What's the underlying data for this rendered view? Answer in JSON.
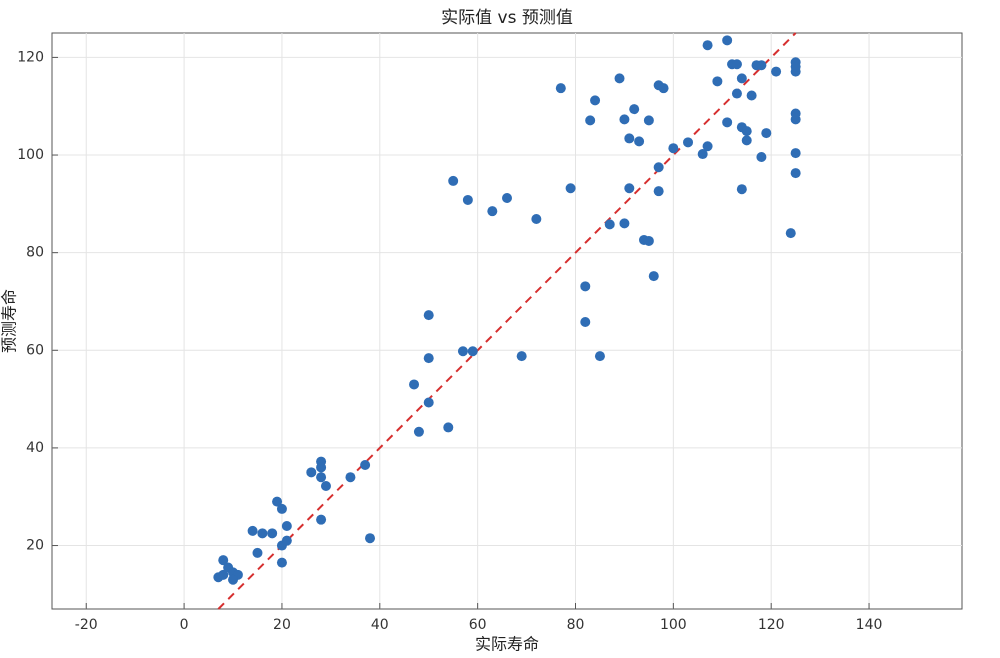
{
  "chart_data": {
    "type": "scatter",
    "title": "实际值 vs 预测值",
    "x_label": "实际寿命",
    "y_label": "预测寿命",
    "xlim": [
      -27,
      159
    ],
    "ylim": [
      7,
      125
    ],
    "xticks": [
      -20,
      0,
      20,
      40,
      60,
      80,
      100,
      120,
      140
    ],
    "yticks": [
      20,
      40,
      60,
      80,
      100,
      120
    ],
    "grid": true,
    "reference_line": "y=x",
    "series": [
      {
        "color": "#2f6db5",
        "line_color": "#d62f2f",
        "x": [
          8,
          7,
          8,
          9,
          10,
          11,
          10,
          14,
          15,
          16,
          18,
          19,
          20,
          21,
          20,
          21,
          20,
          26,
          28,
          28,
          28,
          29,
          28,
          34,
          37,
          38,
          47,
          48,
          50,
          50,
          50,
          54,
          57,
          59,
          69,
          55,
          58,
          63,
          66,
          72,
          77,
          79,
          82,
          82,
          85,
          83,
          84,
          87,
          90,
          89,
          90,
          91,
          91,
          92,
          93,
          94,
          95,
          95,
          96,
          97,
          97,
          97,
          98,
          100,
          103,
          106,
          107,
          107,
          109,
          111,
          111,
          112,
          113,
          113,
          114,
          114,
          114,
          115,
          115,
          116,
          117,
          118,
          118,
          119,
          121,
          124,
          125,
          125,
          125,
          125,
          125,
          125,
          125
        ],
        "values": [
          17,
          13.5,
          14,
          15.5,
          14.5,
          14,
          13,
          23,
          18.5,
          22.5,
          22.5,
          29,
          27.5,
          24,
          20,
          21,
          16.5,
          35,
          37.2,
          36,
          34,
          32.2,
          25.3,
          34,
          36.5,
          21.5,
          53,
          43.3,
          49.3,
          58.4,
          67.2,
          44.2,
          59.8,
          59.8,
          58.8,
          94.7,
          90.8,
          88.5,
          91.2,
          86.9,
          113.7,
          93.2,
          73.1,
          65.8,
          58.8,
          107.1,
          111.2,
          85.8,
          86,
          115.7,
          107.3,
          103.4,
          93.2,
          109.4,
          102.8,
          82.6,
          82.4,
          107.1,
          75.2,
          92.6,
          97.5,
          114.3,
          113.7,
          101.4,
          102.6,
          100.2,
          101.8,
          122.5,
          115.1,
          123.5,
          106.7,
          118.6,
          118.6,
          112.6,
          115.7,
          105.7,
          93,
          104.9,
          103,
          112.2,
          118.4,
          118.4,
          99.6,
          104.5,
          117.1,
          84,
          96.3,
          100.4,
          107.3,
          108.5,
          117.1,
          119,
          118.1
        ]
      }
    ]
  }
}
